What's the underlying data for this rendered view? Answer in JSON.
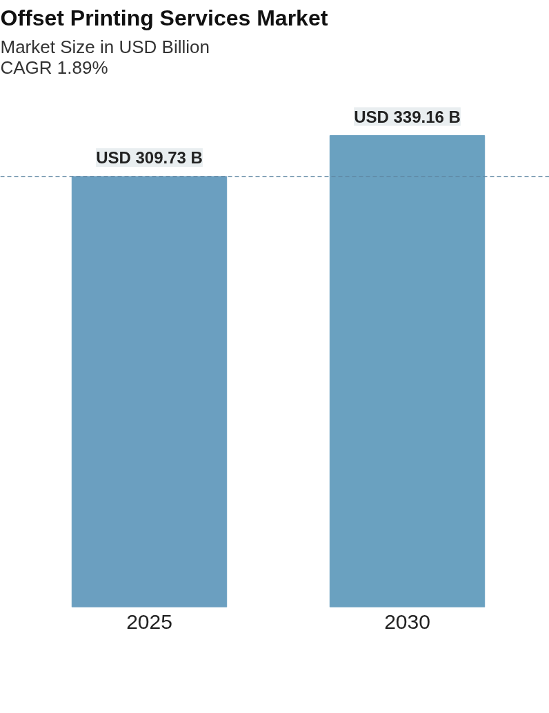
{
  "chart_data": {
    "type": "bar",
    "title": "Offset Printing Services Market",
    "subtitle": "Market Size in USD Billion\nCAGR 1.89%",
    "categories": [
      "2025",
      "2030"
    ],
    "values": [
      309.73,
      339.16
    ],
    "colors": [
      "#6b9fc0",
      "#6aa1c0"
    ],
    "value_labels": [
      "USD 309.73 B",
      "USD 339.16 B"
    ],
    "tick_labels": "x",
    "grid": false,
    "ref_lines": [
      {
        "axis": "y",
        "value": 309.73,
        "color": "#5f86a3",
        "line_style": "dashed"
      }
    ]
  }
}
